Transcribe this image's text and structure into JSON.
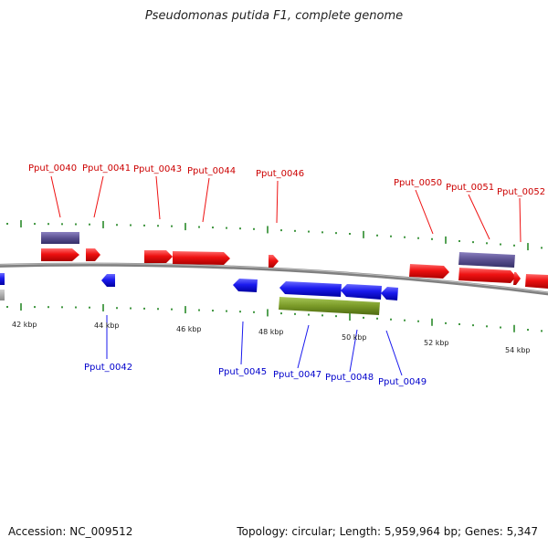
{
  "title": "Pseudomonas putida F1, complete genome",
  "footer": {
    "accession": "Accession: NC_009512",
    "summary": "Topology: circular; Length: 5,959,964 bp; Genes: 5,347"
  },
  "colors": {
    "forward_gene": "#ee1111",
    "reverse_gene": "#1a1aee",
    "forward_label": "#cc0000",
    "reverse_label": "#0000cc",
    "purple_feature": "#5a5090",
    "olive_feature": "#7a9a28",
    "gray_feature": "#9a9a9a",
    "tick": "#2a8a2a",
    "backbone": "#808080"
  },
  "scale_labels": [
    "42 kbp",
    "44 kbp",
    "46 kbp",
    "48 kbp",
    "50 kbp",
    "52 kbp",
    "54 kbp"
  ],
  "forward_labels": [
    "Pput_0040",
    "Pput_0041",
    "Pput_0043",
    "Pput_0044",
    "Pput_0046",
    "Pput_0050",
    "Pput_0051",
    "Pput_0052"
  ],
  "reverse_labels": [
    "Pput_0042",
    "Pput_0045",
    "Pput_0047",
    "Pput_0048",
    "Pput_0049"
  ]
}
